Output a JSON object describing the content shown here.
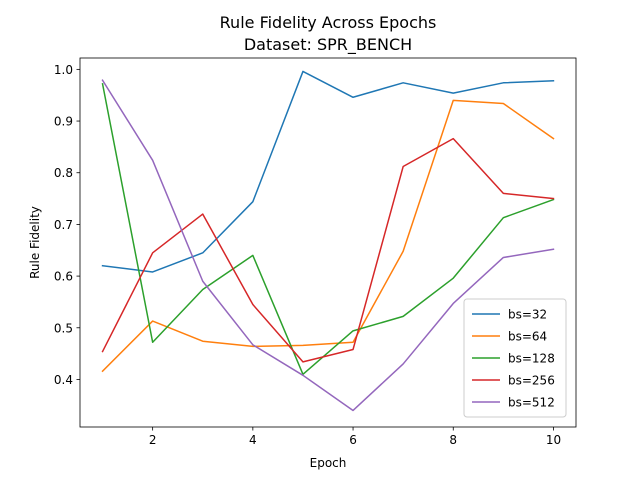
{
  "chart_data": {
    "type": "line",
    "title": "Rule Fidelity Across Epochs",
    "subtitle": "Dataset: SPR_BENCH",
    "xlabel": "Epoch",
    "ylabel": "Rule Fidelity",
    "x": [
      1,
      2,
      3,
      4,
      5,
      6,
      7,
      8,
      9,
      10
    ],
    "xlim": [
      0.55,
      10.45
    ],
    "ylim": [
      0.308,
      1.022
    ],
    "xticks": [
      2,
      4,
      6,
      8,
      10
    ],
    "yticks": [
      0.4,
      0.5,
      0.6,
      0.7,
      0.8,
      0.9,
      1.0
    ],
    "grid": false,
    "legend_position": "lower-right",
    "series": [
      {
        "name": "bs=32",
        "color": "#1f77b4",
        "values": [
          0.62,
          0.608,
          0.645,
          0.744,
          0.996,
          0.946,
          0.974,
          0.954,
          0.974,
          0.978
        ]
      },
      {
        "name": "bs=64",
        "color": "#ff7f0e",
        "values": [
          0.416,
          0.513,
          0.474,
          0.464,
          0.466,
          0.472,
          0.648,
          0.94,
          0.934,
          0.866
        ]
      },
      {
        "name": "bs=128",
        "color": "#2ca02c",
        "values": [
          0.972,
          0.472,
          0.574,
          0.64,
          0.41,
          0.494,
          0.522,
          0.596,
          0.713,
          0.748
        ]
      },
      {
        "name": "bs=256",
        "color": "#d62728",
        "values": [
          0.454,
          0.645,
          0.72,
          0.545,
          0.434,
          0.458,
          0.812,
          0.866,
          0.76,
          0.75
        ]
      },
      {
        "name": "bs=512",
        "color": "#9467bd",
        "values": [
          0.979,
          0.824,
          0.59,
          0.467,
          0.408,
          0.34,
          0.43,
          0.547,
          0.636,
          0.652
        ]
      }
    ]
  }
}
